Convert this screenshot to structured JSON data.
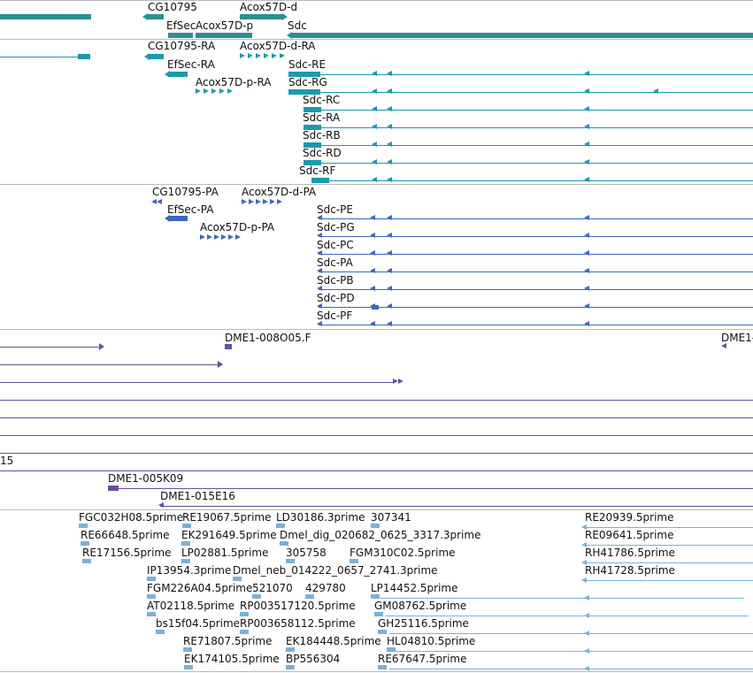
{
  "colors": {
    "gene": "#2e8f93",
    "transcript": "#1a9aae",
    "protein": "#3d67c0",
    "clone": "#6a4ea1",
    "est": "#78b2d8",
    "separator": "#bbbbbb"
  },
  "gene_track": {
    "labels": [
      "CG10795",
      "Acox57D-d",
      "EfSec",
      "Acox57D-p",
      "Sdc"
    ]
  },
  "transcript_track": {
    "labels": [
      "CG10795-RA",
      "Acox57D-d-RA",
      "EfSec-RA",
      "Sdc-RE",
      "Acox57D-p-RA",
      "Sdc-RG",
      "Sdc-RC",
      "Sdc-RA",
      "Sdc-RB",
      "Sdc-RD",
      "Sdc-RF"
    ]
  },
  "protein_track": {
    "labels": [
      "CG10795-PA",
      "Acox57D-d-PA",
      "EfSec-PA",
      "Sdc-PE",
      "Acox57D-p-PA",
      "Sdc-PG",
      "Sdc-PC",
      "Sdc-PA",
      "Sdc-PB",
      "Sdc-PD",
      "Sdc-PF"
    ]
  },
  "clone_track": {
    "labels": [
      "DME1-008O05.F",
      "DME1-",
      "15",
      "DME1-005K09",
      "DME1-015E16"
    ]
  },
  "est_track": {
    "labels": [
      "FGC032H08.5prime",
      "RE19067.5prime",
      "LD30186.3prime",
      "307341",
      "RE20939.5prime",
      "RE66648.5prime",
      "EK291649.5prime",
      "Dmel_dig_020682_0625_3317.3prime",
      "RE09641.5prime",
      "RE17156.5prime",
      "LP02881.5prime",
      "305758",
      "FGM310C02.5prime",
      "RH41786.5prime",
      "IP13954.3prime",
      "Dmel_neb_014222_0657_2741.3prime",
      "RH41728.5prime",
      "FGM226A04.5prime",
      "521070",
      "429780",
      "LP14452.5prime",
      "AT02118.5prime",
      "RP003517120.5prime",
      "GM08762.5prime",
      "bs15f04.5prime",
      "RP003658112.5prime",
      "GH25116.5prime",
      "RE71807.5prime",
      "EK184448.5prime",
      "HL04810.5prime",
      "EK174105.5prime",
      "BP556304",
      "RE67647.5prime"
    ]
  }
}
